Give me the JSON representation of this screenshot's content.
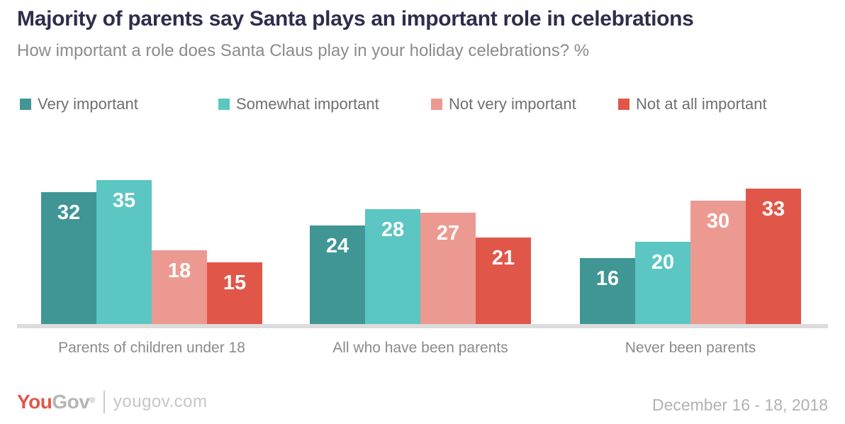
{
  "chart_data": {
    "type": "bar",
    "title": "Majority of parents say Santa plays an important role in celebrations",
    "subtitle": "How important a role does Santa Claus play in your holiday celebrations? %",
    "categories": [
      "Parents of children under 18",
      "All who have been parents",
      "Never been parents"
    ],
    "series": [
      {
        "name": "Very important",
        "color": "#3F9694",
        "values": [
          32,
          24,
          16
        ]
      },
      {
        "name": "Somewhat important",
        "color": "#5BC6C2",
        "values": [
          35,
          28,
          20
        ]
      },
      {
        "name": "Not very important",
        "color": "#EC9A91",
        "values": [
          18,
          27,
          30
        ]
      },
      {
        "name": "Not at all important",
        "color": "#E0574A",
        "values": [
          15,
          21,
          33
        ]
      }
    ],
    "ylim": [
      0,
      35
    ],
    "grid": false,
    "legend_position": "top",
    "bar_value_labels_inside": true,
    "bar_label_color": "#ffffff"
  },
  "footer": {
    "brand_you": "You",
    "brand_gov": "Gov",
    "registered_mark": "®",
    "website": "yougov.com",
    "date_range": "December 16 - 18, 2018"
  },
  "colors": {
    "title_text": "#2E2D4D",
    "subtitle_text": "#8B8B8B",
    "axis_line": "#DCDCDC",
    "brand_red": "#E0574A",
    "brand_gray": "#B5B5B5"
  }
}
